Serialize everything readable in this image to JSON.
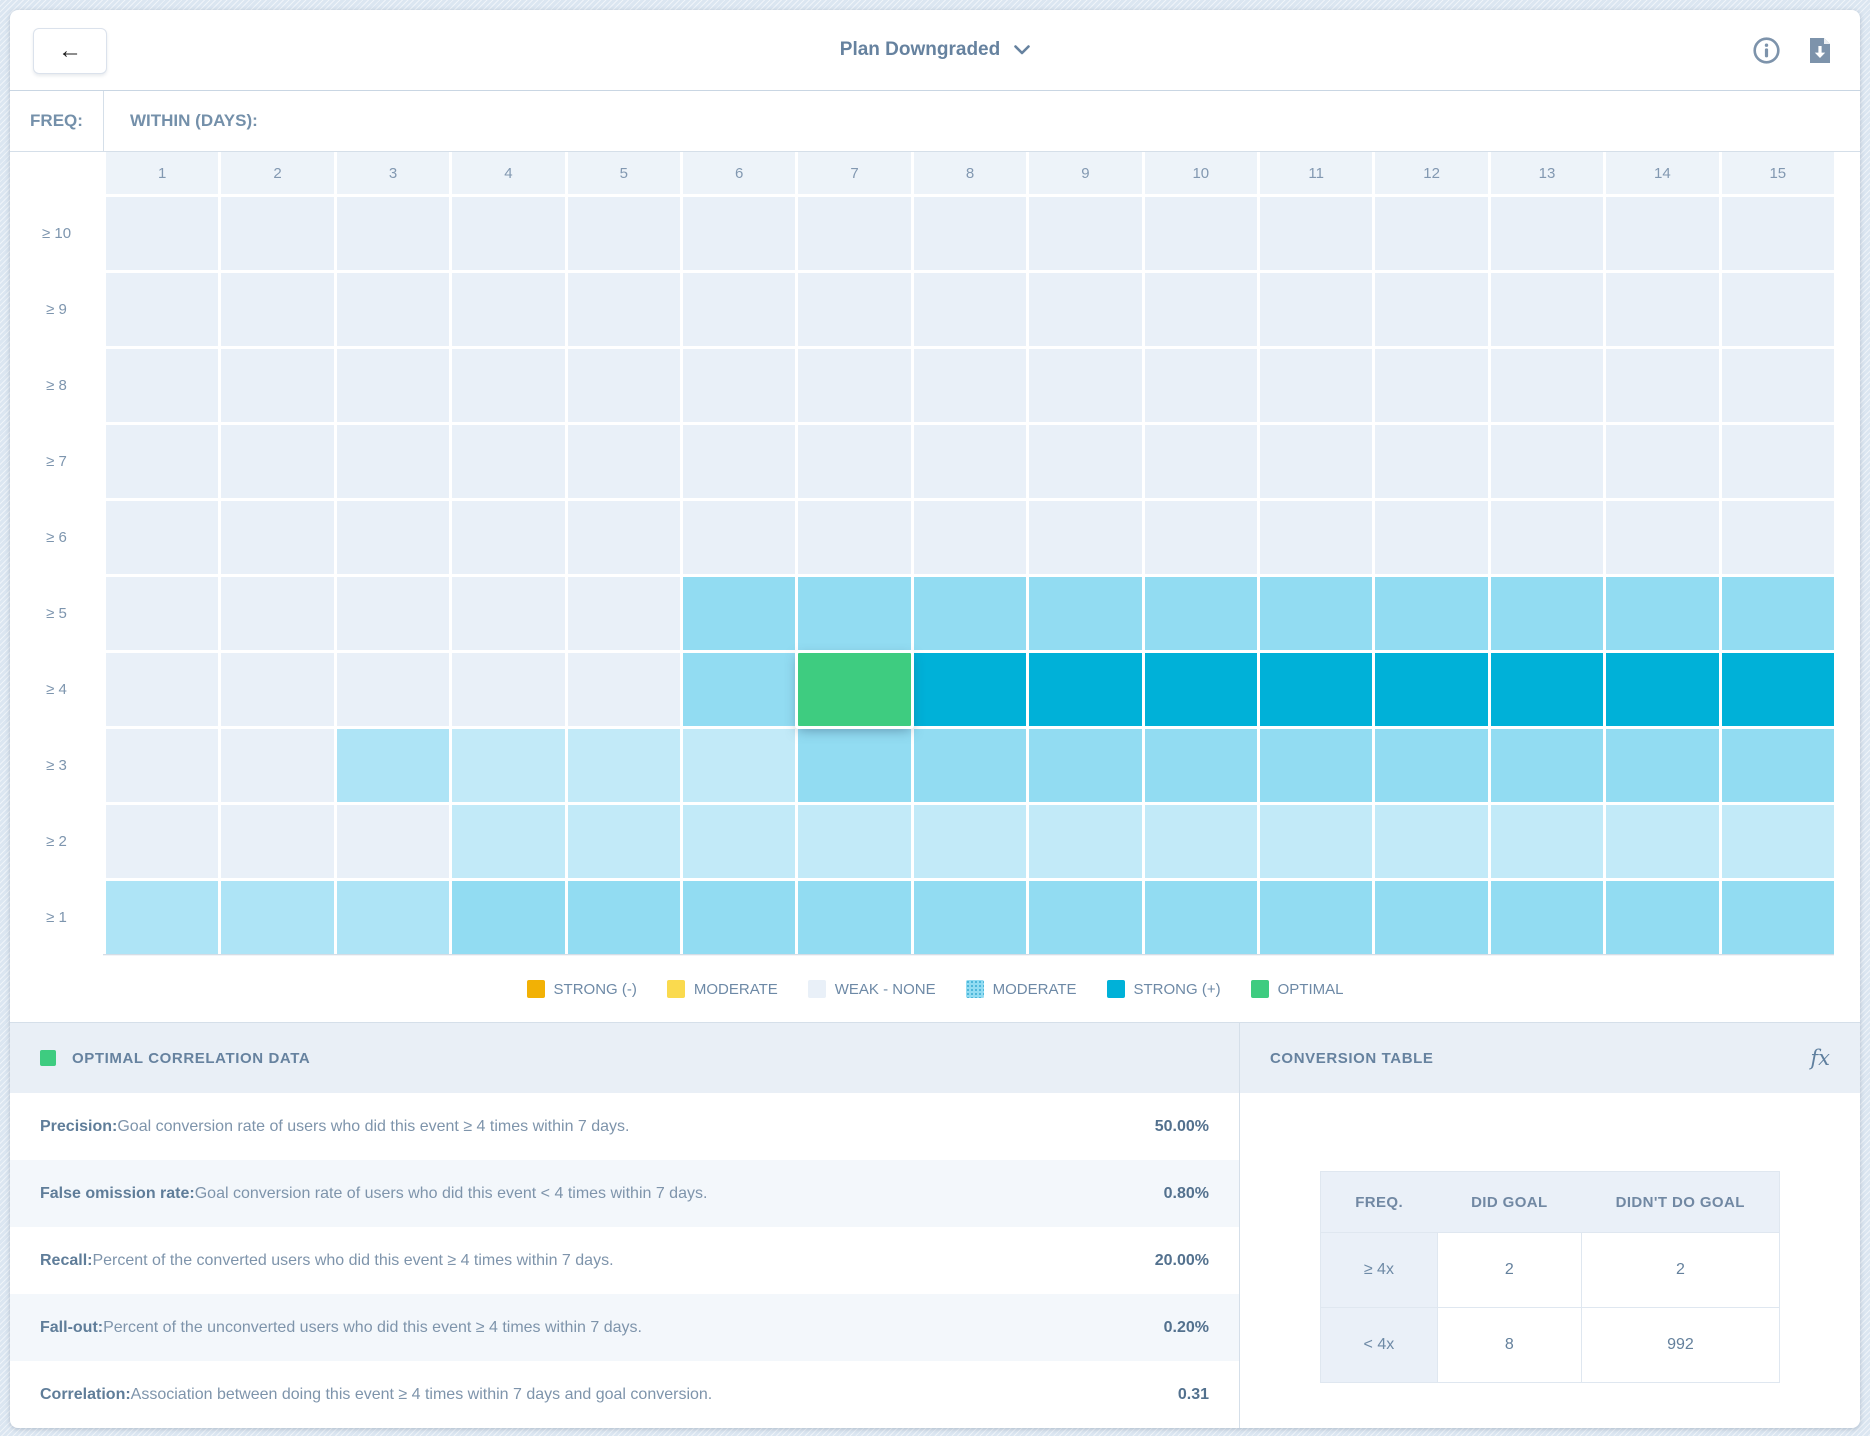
{
  "header": {
    "back_label": "←",
    "title": "Plan Downgraded"
  },
  "colors": {
    "strong_neg": "#f2b105",
    "moderate_neg": "#fada4e",
    "weak": "#e9f0f8",
    "light": "#c2eaf8",
    "light2": "#aee4f6",
    "moderate": "#92dcf2",
    "strong": "#00b1d8",
    "optimal": "#3ecc80"
  },
  "heatmap": {
    "freq_label": "FREQ:",
    "within_label": "WITHIN (DAYS):",
    "columns": [
      "1",
      "2",
      "3",
      "4",
      "5",
      "6",
      "7",
      "8",
      "9",
      "10",
      "11",
      "12",
      "13",
      "14",
      "15"
    ],
    "rows": [
      {
        "label": "≥ 10",
        "cells": [
          "weak",
          "weak",
          "weak",
          "weak",
          "weak",
          "weak",
          "weak",
          "weak",
          "weak",
          "weak",
          "weak",
          "weak",
          "weak",
          "weak",
          "weak"
        ]
      },
      {
        "label": "≥ 9",
        "cells": [
          "weak",
          "weak",
          "weak",
          "weak",
          "weak",
          "weak",
          "weak",
          "weak",
          "weak",
          "weak",
          "weak",
          "weak",
          "weak",
          "weak",
          "weak"
        ]
      },
      {
        "label": "≥ 8",
        "cells": [
          "weak",
          "weak",
          "weak",
          "weak",
          "weak",
          "weak",
          "weak",
          "weak",
          "weak",
          "weak",
          "weak",
          "weak",
          "weak",
          "weak",
          "weak"
        ]
      },
      {
        "label": "≥ 7",
        "cells": [
          "weak",
          "weak",
          "weak",
          "weak",
          "weak",
          "weak",
          "weak",
          "weak",
          "weak",
          "weak",
          "weak",
          "weak",
          "weak",
          "weak",
          "weak"
        ]
      },
      {
        "label": "≥ 6",
        "cells": [
          "weak",
          "weak",
          "weak",
          "weak",
          "weak",
          "weak",
          "weak",
          "weak",
          "weak",
          "weak",
          "weak",
          "weak",
          "weak",
          "weak",
          "weak"
        ]
      },
      {
        "label": "≥ 5",
        "cells": [
          "weak",
          "weak",
          "weak",
          "weak",
          "weak",
          "moderate",
          "moderate",
          "moderate",
          "moderate",
          "moderate",
          "moderate",
          "moderate",
          "moderate",
          "moderate",
          "moderate"
        ]
      },
      {
        "label": "≥ 4",
        "cells": [
          "weak",
          "weak",
          "weak",
          "weak",
          "weak",
          "moderate",
          "optimal",
          "strong",
          "strong",
          "strong",
          "strong",
          "strong",
          "strong",
          "strong",
          "strong"
        ]
      },
      {
        "label": "≥ 3",
        "cells": [
          "weak",
          "weak",
          "light2",
          "light",
          "light",
          "light",
          "moderate",
          "moderate",
          "moderate",
          "moderate",
          "moderate",
          "moderate",
          "moderate",
          "moderate",
          "moderate"
        ]
      },
      {
        "label": "≥ 2",
        "cells": [
          "weak",
          "weak",
          "weak",
          "light",
          "light",
          "light",
          "light",
          "light",
          "light",
          "light",
          "light",
          "light",
          "light",
          "light",
          "light"
        ]
      },
      {
        "label": "≥ 1",
        "cells": [
          "light2",
          "light2",
          "light2",
          "moderate",
          "moderate",
          "moderate",
          "moderate",
          "moderate",
          "moderate",
          "moderate",
          "moderate",
          "moderate",
          "moderate",
          "moderate",
          "moderate"
        ]
      }
    ],
    "selected_cell": {
      "row": "≥ 4",
      "column": "7",
      "level": "optimal"
    }
  },
  "legend": [
    {
      "label": "STRONG (-)",
      "color": "strong_neg",
      "dotted": false
    },
    {
      "label": "MODERATE",
      "color": "moderate_neg",
      "dotted": false
    },
    {
      "label": "WEAK - NONE",
      "color": "weak",
      "dotted": false
    },
    {
      "label": "MODERATE",
      "color": "moderate",
      "dotted": true
    },
    {
      "label": "STRONG (+)",
      "color": "strong",
      "dotted": false
    },
    {
      "label": "OPTIMAL",
      "color": "optimal",
      "dotted": false
    }
  ],
  "optimal_panel": {
    "title": "OPTIMAL CORRELATION DATA",
    "rows": [
      {
        "label": "Precision:",
        "desc": " Goal conversion rate of users who did this event ≥ 4 times within 7 days.",
        "value": "50.00%"
      },
      {
        "label": "False omission rate:",
        "desc": " Goal conversion rate of users who did this event < 4 times within 7 days.",
        "value": "0.80%"
      },
      {
        "label": "Recall:",
        "desc": " Percent of the converted users who did this event ≥ 4 times within 7 days.",
        "value": "20.00%"
      },
      {
        "label": "Fall-out:",
        "desc": " Percent of the unconverted users who did this event ≥ 4 times within 7 days.",
        "value": "0.20%"
      },
      {
        "label": "Correlation:",
        "desc": " Association between doing this event ≥ 4 times within 7 days and goal conversion.",
        "value": "0.31"
      }
    ]
  },
  "conversion_panel": {
    "title": "CONVERSION TABLE",
    "fx_label": "fx",
    "table": {
      "headers": [
        "FREQ.",
        "DID GOAL",
        "DIDN'T DO GOAL"
      ],
      "rows": [
        {
          "freq": "≥ 4x",
          "did": "2",
          "didnt": "2"
        },
        {
          "freq": "< 4x",
          "did": "8",
          "didnt": "992"
        }
      ]
    }
  }
}
